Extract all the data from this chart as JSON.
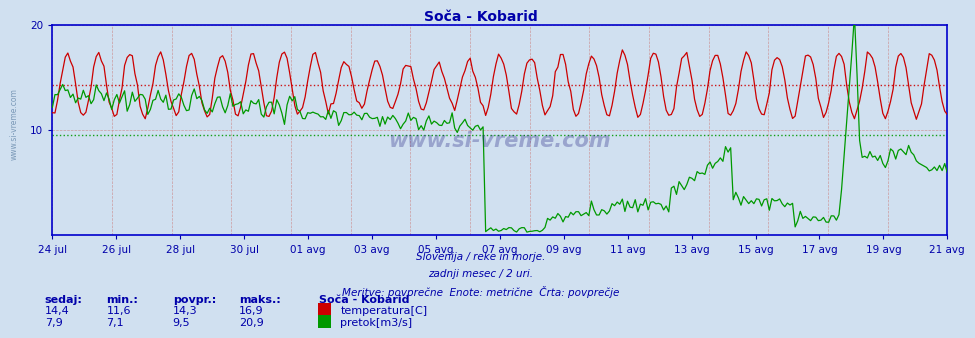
{
  "title": "Soča - Kobarid",
  "bg_color": "#d0e0f0",
  "plot_bg_color": "#d0e0f0",
  "temp_color": "#cc0000",
  "flow_color": "#009900",
  "temp_avg_color": "#cc0000",
  "flow_avg_color": "#009900",
  "axis_color": "#0000cc",
  "text_color": "#0000aa",
  "ylim": [
    0,
    20
  ],
  "temp_avg": 14.3,
  "flow_avg": 9.5,
  "temp_min": 11.6,
  "temp_max": 16.9,
  "flow_min": 7.1,
  "flow_max": 20.9,
  "temp_current": 14.4,
  "flow_current": 7.9,
  "subtitle1": "Slovenija / reke in morje.",
  "subtitle2": "zadnji mesec / 2 uri.",
  "subtitle3": "Meritve: povprečne  Enote: metrične  Črta: povprečje",
  "legend_title": "Soča - Kobarid",
  "legend_temp": "temperatura[C]",
  "legend_flow": "pretok[m3/s]",
  "col_sedaj": "sedaj:",
  "col_min": "min.:",
  "col_povpr": "povpr.:",
  "col_maks": "maks.:",
  "watermark": "www.si-vreme.com",
  "x_labels": [
    "24 jul",
    "26 jul",
    "28 jul",
    "30 jul",
    "01 avg",
    "03 avg",
    "05 avg",
    "07 avg",
    "09 avg",
    "11 avg",
    "13 avg",
    "15 avg",
    "17 avg",
    "19 avg",
    "21 avg"
  ],
  "n_days": 29
}
